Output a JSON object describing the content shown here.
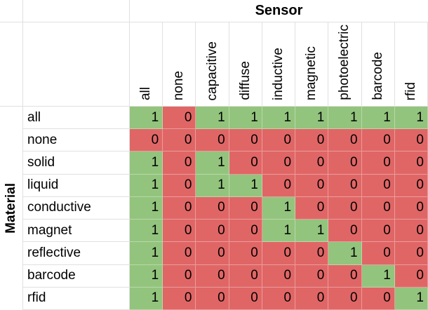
{
  "chart_data": {
    "type": "heatmap",
    "column_axis_title": "Sensor",
    "row_axis_title": "Material",
    "columns": [
      "all",
      "none",
      "capacitive",
      "diffuse",
      "inductive",
      "magnetic",
      "photoelectric",
      "barcode",
      "rfid"
    ],
    "rows": [
      "all",
      "none",
      "solid",
      "liquid",
      "conductive",
      "magnet",
      "reflective",
      "barcode",
      "rfid"
    ],
    "values": [
      [
        1,
        0,
        1,
        1,
        1,
        1,
        1,
        1,
        1
      ],
      [
        0,
        0,
        0,
        0,
        0,
        0,
        0,
        0,
        0
      ],
      [
        1,
        0,
        1,
        0,
        0,
        0,
        0,
        0,
        0
      ],
      [
        1,
        0,
        1,
        1,
        0,
        0,
        0,
        0,
        0
      ],
      [
        1,
        0,
        0,
        0,
        1,
        0,
        0,
        0,
        0
      ],
      [
        1,
        0,
        0,
        0,
        1,
        1,
        0,
        0,
        0
      ],
      [
        1,
        0,
        0,
        0,
        0,
        0,
        1,
        0,
        0
      ],
      [
        1,
        0,
        0,
        0,
        0,
        0,
        0,
        1,
        0
      ],
      [
        1,
        0,
        0,
        0,
        0,
        0,
        0,
        0,
        1
      ]
    ],
    "cell_color_map": {
      "1": "#93C47D",
      "0": "#E06666"
    },
    "gridline_color": "#E0E0E0",
    "legend_position": "none",
    "grid": true
  }
}
